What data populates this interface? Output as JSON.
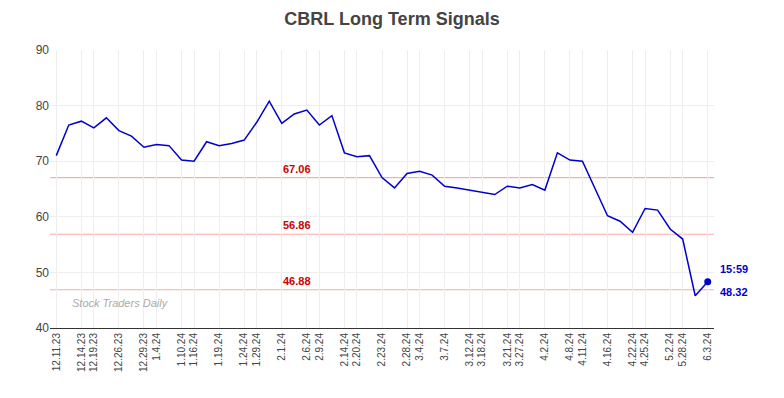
{
  "chart_data": {
    "type": "line",
    "title": "CBRL Long Term Signals",
    "categories": [
      "12.11.23",
      null,
      "12.14.23",
      "12.19.23",
      null,
      "12.26.23",
      null,
      "12.29.23",
      "1.4.24",
      null,
      "1.10.24",
      "1.16.24",
      null,
      "1.19.24",
      null,
      "1.24.24",
      "1.29.24",
      null,
      "2.1.24",
      null,
      "2.6.24",
      "2.9.24",
      null,
      "2.14.24",
      "2.20.24",
      null,
      "2.23.24",
      null,
      "2.28.24",
      "3.4.24",
      null,
      "3.7.24",
      null,
      "3.12.24",
      "3.18.24",
      null,
      "3.21.24",
      "3.27.24",
      null,
      "4.2.24",
      null,
      "4.8.24",
      "4.11.24",
      null,
      "4.16.24",
      null,
      "4.22.24",
      "4.25.24",
      null,
      "5.2.24",
      "5.28.24",
      null,
      "6.3.24"
    ],
    "values": [
      71.0,
      76.5,
      77.2,
      76.0,
      77.8,
      75.5,
      74.5,
      72.5,
      73.0,
      72.8,
      70.2,
      70.0,
      73.5,
      72.8,
      73.2,
      73.8,
      77.0,
      80.8,
      76.8,
      78.5,
      79.2,
      76.5,
      78.2,
      71.5,
      70.8,
      71.0,
      67.06,
      65.2,
      67.8,
      68.2,
      67.5,
      65.5,
      65.2,
      64.8,
      64.5,
      64.0,
      65.5,
      65.2,
      65.8,
      64.8,
      71.5,
      70.2,
      70.0,
      65.2,
      60.2,
      59.2,
      57.2,
      61.5,
      61.2,
      57.8,
      56.0,
      45.8,
      48.32
    ],
    "color": "#0000cc",
    "ylim": [
      40,
      90
    ],
    "yticks": [
      40,
      50,
      60,
      70,
      80,
      90
    ],
    "grid": true,
    "reference_lines": [
      {
        "value": 67.06,
        "label": "67.06",
        "color": "#ffaaaa",
        "label_color": "#cc0000"
      },
      {
        "value": 56.86,
        "label": "56.86",
        "color": "#ffaaaa",
        "label_color": "#cc0000"
      },
      {
        "value": 46.88,
        "label": "46.88",
        "color": "#ffaaaa",
        "label_color": "#cc0000"
      }
    ],
    "watermark": {
      "text": "Stock Traders Daily",
      "color": "#aaaaaa"
    },
    "last_point": {
      "value": 48.32,
      "time": "15:59",
      "color": "#0000cc"
    }
  }
}
